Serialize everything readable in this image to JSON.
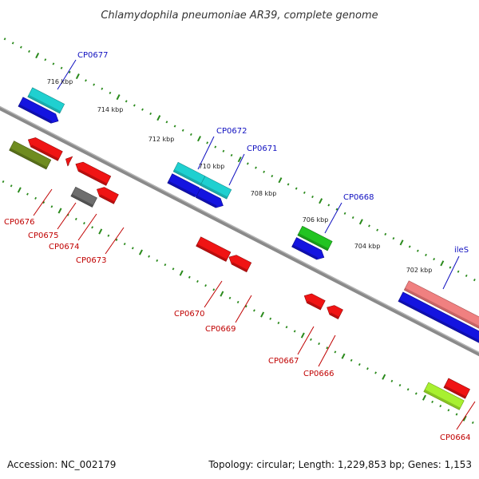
{
  "title": "Chlamydophila pneumoniae AR39, complete genome",
  "footer": {
    "accession": "Accession: NC_002179",
    "topology": "Topology: circular; Length: 1,229,853 bp; Genes: 1,153"
  },
  "colors": {
    "backbone": "#8c8c8c",
    "tick": "#2d8a1e",
    "forward_label": "#1010c0",
    "reverse_label": "#c00000"
  },
  "scale_labels": [
    "716 kbp",
    "714 kbp",
    "712 kbp",
    "710 kbp",
    "708 kbp",
    "706 kbp",
    "704 kbp",
    "702 kbp"
  ],
  "forward_gene_labels": [
    "CP0677",
    "CP0672",
    "CP0671",
    "CP0668",
    "ileS"
  ],
  "reverse_gene_labels": [
    "CP0676",
    "CP0675",
    "CP0674",
    "CP0673",
    "CP0670",
    "CP0669",
    "CP0667",
    "CP0666",
    "CP0664"
  ]
}
